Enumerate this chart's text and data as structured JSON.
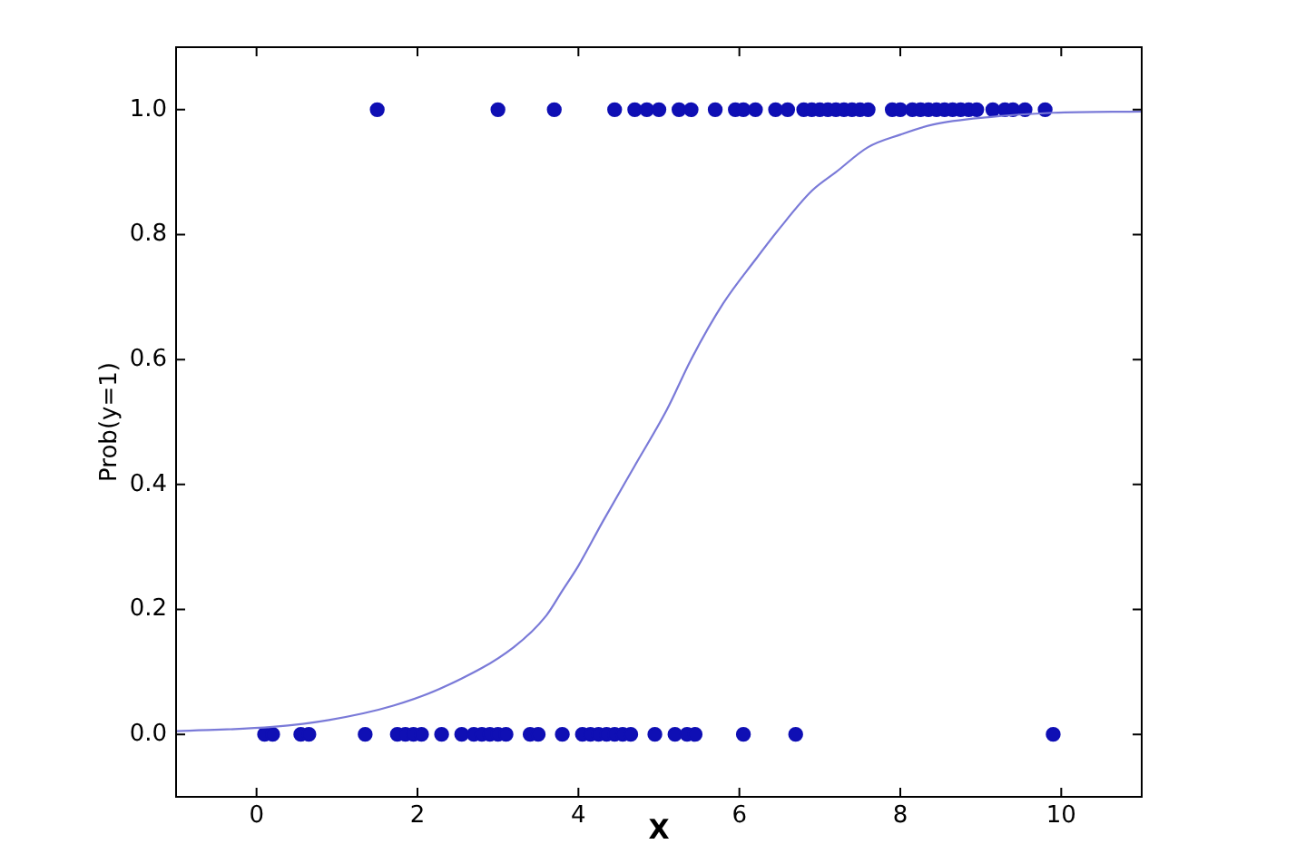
{
  "chart_data": {
    "type": "scatter",
    "xlabel": "X",
    "ylabel": "Prob(y=1)",
    "xlim": [
      -1,
      11
    ],
    "ylim": [
      -0.1,
      1.1
    ],
    "xticks": [
      0,
      2,
      4,
      6,
      8,
      10
    ],
    "yticks": [
      {
        "value": 0,
        "label": "0.0"
      },
      {
        "value": 0.2,
        "label": "0.2"
      },
      {
        "value": 0.4,
        "label": "0.4"
      },
      {
        "value": 0.6,
        "label": "0.6"
      },
      {
        "value": 0.8,
        "label": "0.8"
      },
      {
        "value": 1,
        "label": "1.0"
      }
    ],
    "grid": false,
    "legend": false,
    "marker": "circle",
    "series": [
      {
        "color": "#0f0fb4",
        "x": [
          1.5,
          3.0,
          3.7,
          4.45,
          4.7,
          4.85,
          5.0,
          5.25,
          5.4,
          5.7,
          5.95,
          6.05,
          6.2,
          6.45,
          6.6,
          6.8,
          6.9,
          7.0,
          7.1,
          7.2,
          7.3,
          7.4,
          7.5,
          7.6,
          7.9,
          8.0,
          8.15,
          8.25,
          8.35,
          8.45,
          8.55,
          8.65,
          8.75,
          8.85,
          8.95,
          9.15,
          9.3,
          9.4,
          9.55,
          9.8,
          0.1,
          0.2,
          0.55,
          0.65,
          1.35,
          1.75,
          1.85,
          1.95,
          2.05,
          2.3,
          2.55,
          2.7,
          2.8,
          2.9,
          3.0,
          3.1,
          3.4,
          3.5,
          3.8,
          4.05,
          4.15,
          4.25,
          4.35,
          4.45,
          4.55,
          4.65,
          4.95,
          5.2,
          5.35,
          5.45,
          6.05,
          6.7,
          9.9
        ],
        "values": [
          1,
          1,
          1,
          1,
          1,
          1,
          1,
          1,
          1,
          1,
          1,
          1,
          1,
          1,
          1,
          1,
          1,
          1,
          1,
          1,
          1,
          1,
          1,
          1,
          1,
          1,
          1,
          1,
          1,
          1,
          1,
          1,
          1,
          1,
          1,
          1,
          1,
          1,
          1,
          1,
          0,
          0,
          0,
          0,
          0,
          0,
          0,
          0,
          0,
          0,
          0,
          0,
          0,
          0,
          0,
          0,
          0,
          0,
          0,
          0,
          0,
          0,
          0,
          0,
          0,
          0,
          0,
          0,
          0,
          0,
          0,
          0,
          0
        ]
      },
      {
        "type": "line",
        "color": "#7a7ad8",
        "marker": "none",
        "line_style": "solid",
        "x": [
          -1,
          0.2,
          0.9,
          1.7,
          2.4,
          3.2,
          3.6,
          3.8,
          4.0,
          4.3,
          4.7,
          5.1,
          5.4,
          5.8,
          6.2,
          6.5,
          6.9,
          7.2,
          7.6,
          8.0,
          8.4,
          9.1,
          9.9,
          11
        ],
        "values": [
          0.005,
          0.012,
          0.023,
          0.046,
          0.08,
          0.14,
          0.19,
          0.23,
          0.27,
          0.34,
          0.43,
          0.52,
          0.6,
          0.69,
          0.76,
          0.81,
          0.87,
          0.9,
          0.94,
          0.96,
          0.976,
          0.988,
          0.995,
          0.997
        ]
      }
    ]
  }
}
